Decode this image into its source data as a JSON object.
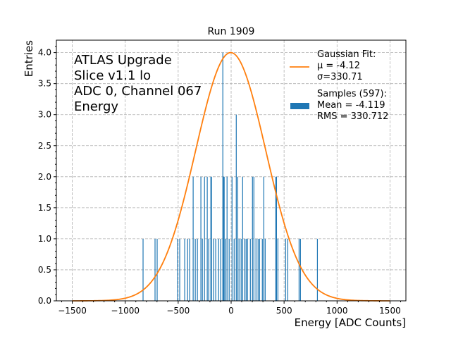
{
  "chart_data": {
    "type": "bar",
    "title": "Run 1909",
    "xlabel": "Energy [ADC Counts]",
    "ylabel": "Entries",
    "xlim": [
      -1650,
      1650
    ],
    "ylim": [
      0,
      4.2
    ],
    "xticks": [
      -1500,
      -1000,
      -500,
      0,
      500,
      1000,
      1500
    ],
    "xtick_labels": [
      "−1500",
      "−1000",
      "−500",
      "0",
      "500",
      "1000",
      "1500"
    ],
    "yticks": [
      0.0,
      0.5,
      1.0,
      1.5,
      2.0,
      2.5,
      3.0,
      3.5,
      4.0
    ],
    "ytick_labels": [
      "0.0",
      "0.5",
      "1.0",
      "1.5",
      "2.0",
      "2.5",
      "3.0",
      "3.5",
      "4.0"
    ],
    "grid": true,
    "annotation": [
      "ATLAS Upgrade",
      "Slice v1.1 lo",
      "ADC 0, Channel 067",
      "Energy"
    ],
    "legend": {
      "placement": "top-right",
      "entries": [
        {
          "label_lines": [
            "Gaussian Fit:",
            " μ = -4.12",
            " σ=330.71"
          ],
          "type": "line",
          "color": "#ff7f0e"
        },
        {
          "label_lines": [
            "Samples (597):",
            " Mean = -4.119",
            " RMS = 330.712"
          ],
          "type": "patch",
          "color": "#1f77b4"
        }
      ]
    },
    "fit": {
      "name": "Gaussian Fit",
      "mu": -4.12,
      "sigma": 330.71,
      "amplitude": 4.0,
      "x_range": [
        -1500,
        1500
      ],
      "color": "#ff7f0e"
    },
    "histogram": {
      "name": "Samples",
      "color": "#1f77b4",
      "bin_width": 5,
      "bins": [
        {
          "x": -833,
          "count": 1
        },
        {
          "x": -720,
          "count": 1
        },
        {
          "x": -700,
          "count": 1
        },
        {
          "x": -507,
          "count": 1
        },
        {
          "x": -487,
          "count": 1
        },
        {
          "x": -440,
          "count": 1
        },
        {
          "x": -413,
          "count": 1
        },
        {
          "x": -393,
          "count": 1
        },
        {
          "x": -360,
          "count": 2
        },
        {
          "x": -340,
          "count": 1
        },
        {
          "x": -320,
          "count": 1
        },
        {
          "x": -287,
          "count": 2
        },
        {
          "x": -273,
          "count": 1
        },
        {
          "x": -253,
          "count": 2
        },
        {
          "x": -227,
          "count": 2
        },
        {
          "x": -213,
          "count": 1
        },
        {
          "x": -193,
          "count": 2
        },
        {
          "x": -187,
          "count": 2
        },
        {
          "x": -167,
          "count": 1
        },
        {
          "x": -147,
          "count": 1
        },
        {
          "x": -120,
          "count": 1
        },
        {
          "x": -100,
          "count": 1
        },
        {
          "x": -80,
          "count": 4
        },
        {
          "x": -73,
          "count": 2
        },
        {
          "x": -67,
          "count": 2
        },
        {
          "x": -53,
          "count": 1
        },
        {
          "x": -40,
          "count": 2
        },
        {
          "x": -20,
          "count": 1
        },
        {
          "x": 7,
          "count": 2
        },
        {
          "x": 27,
          "count": 1
        },
        {
          "x": 47,
          "count": 3
        },
        {
          "x": 60,
          "count": 2
        },
        {
          "x": 73,
          "count": 1
        },
        {
          "x": 93,
          "count": 1
        },
        {
          "x": 107,
          "count": 2
        },
        {
          "x": 127,
          "count": 1
        },
        {
          "x": 140,
          "count": 1
        },
        {
          "x": 153,
          "count": 1
        },
        {
          "x": 180,
          "count": 1
        },
        {
          "x": 200,
          "count": 2
        },
        {
          "x": 213,
          "count": 2
        },
        {
          "x": 233,
          "count": 1
        },
        {
          "x": 253,
          "count": 1
        },
        {
          "x": 267,
          "count": 1
        },
        {
          "x": 293,
          "count": 1
        },
        {
          "x": 307,
          "count": 2
        },
        {
          "x": 320,
          "count": 1
        },
        {
          "x": 420,
          "count": 2
        },
        {
          "x": 427,
          "count": 2
        },
        {
          "x": 440,
          "count": 1
        },
        {
          "x": 513,
          "count": 1
        },
        {
          "x": 533,
          "count": 1
        },
        {
          "x": 640,
          "count": 1
        },
        {
          "x": 653,
          "count": 1
        },
        {
          "x": 813,
          "count": 1
        }
      ]
    }
  }
}
